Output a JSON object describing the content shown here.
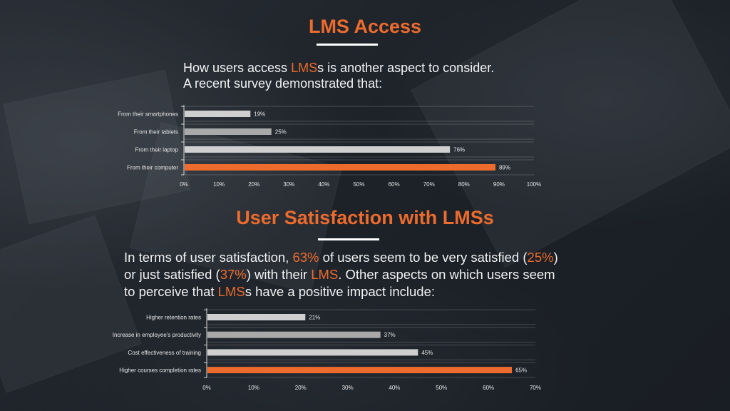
{
  "section1": {
    "title": "LMS Access",
    "paragraph": [
      {
        "text": "How users access ",
        "hl": false
      },
      {
        "text": "LMS",
        "hl": true
      },
      {
        "text": "s is another aspect to consider.",
        "hl": false
      },
      {
        "text": "\n",
        "hl": false
      },
      {
        "text": "A recent survey demonstrated that:",
        "hl": false
      }
    ]
  },
  "section2": {
    "title": "User Satisfaction with LMSs",
    "paragraph": [
      {
        "text": "In terms of user satisfaction, ",
        "hl": false
      },
      {
        "text": "63%",
        "hl": true
      },
      {
        "text": " of users seem to be very satisfied (",
        "hl": false
      },
      {
        "text": "25%",
        "hl": true
      },
      {
        "text": ")",
        "hl": false
      },
      {
        "text": "\n",
        "hl": false
      },
      {
        "text": "or just satisfied (",
        "hl": false
      },
      {
        "text": "37%",
        "hl": true
      },
      {
        "text": ") with their ",
        "hl": false
      },
      {
        "text": "LMS",
        "hl": true
      },
      {
        "text": ". Other aspects on which users seem",
        "hl": false
      },
      {
        "text": "\n",
        "hl": false
      },
      {
        "text": "to perceive that ",
        "hl": false
      },
      {
        "text": "LMS",
        "hl": true
      },
      {
        "text": "s have a positive impact include:",
        "hl": false
      }
    ]
  },
  "colors": {
    "accent": "#ec6b2d",
    "bar_default": "#cfcfcf",
    "bar_alt": "#a9a9a9",
    "label": "#e6e6e6"
  },
  "chart_data": [
    {
      "type": "bar",
      "orientation": "horizontal",
      "categories": [
        "From their smartphones",
        "From their tablets",
        "From their laptop",
        "From their computer"
      ],
      "values": [
        19,
        25,
        76,
        89
      ],
      "value_labels": [
        "19%",
        "25%",
        "76%",
        "89%"
      ],
      "highlight_index": 3,
      "xlim": [
        0,
        100
      ],
      "xticks": [
        0,
        10,
        20,
        30,
        40,
        50,
        60,
        70,
        80,
        90,
        100
      ],
      "xtick_labels": [
        "0%",
        "10%",
        "20%",
        "30%",
        "40%",
        "50%",
        "60%",
        "70%",
        "80%",
        "90%",
        "100%"
      ],
      "grid": true
    },
    {
      "type": "bar",
      "orientation": "horizontal",
      "categories": [
        "Higher retention rates",
        "Increase in employee's productivity",
        "Cost effectiveness of training",
        "Higher courses completion rates"
      ],
      "values": [
        21,
        37,
        45,
        65
      ],
      "value_labels": [
        "21%",
        "37%",
        "45%",
        "65%"
      ],
      "highlight_index": 3,
      "xlim": [
        0,
        70
      ],
      "xticks": [
        0,
        10,
        20,
        30,
        40,
        50,
        60,
        70
      ],
      "xtick_labels": [
        "0%",
        "10%",
        "20%",
        "30%",
        "40%",
        "50%",
        "60%",
        "70%"
      ],
      "grid": true
    }
  ]
}
